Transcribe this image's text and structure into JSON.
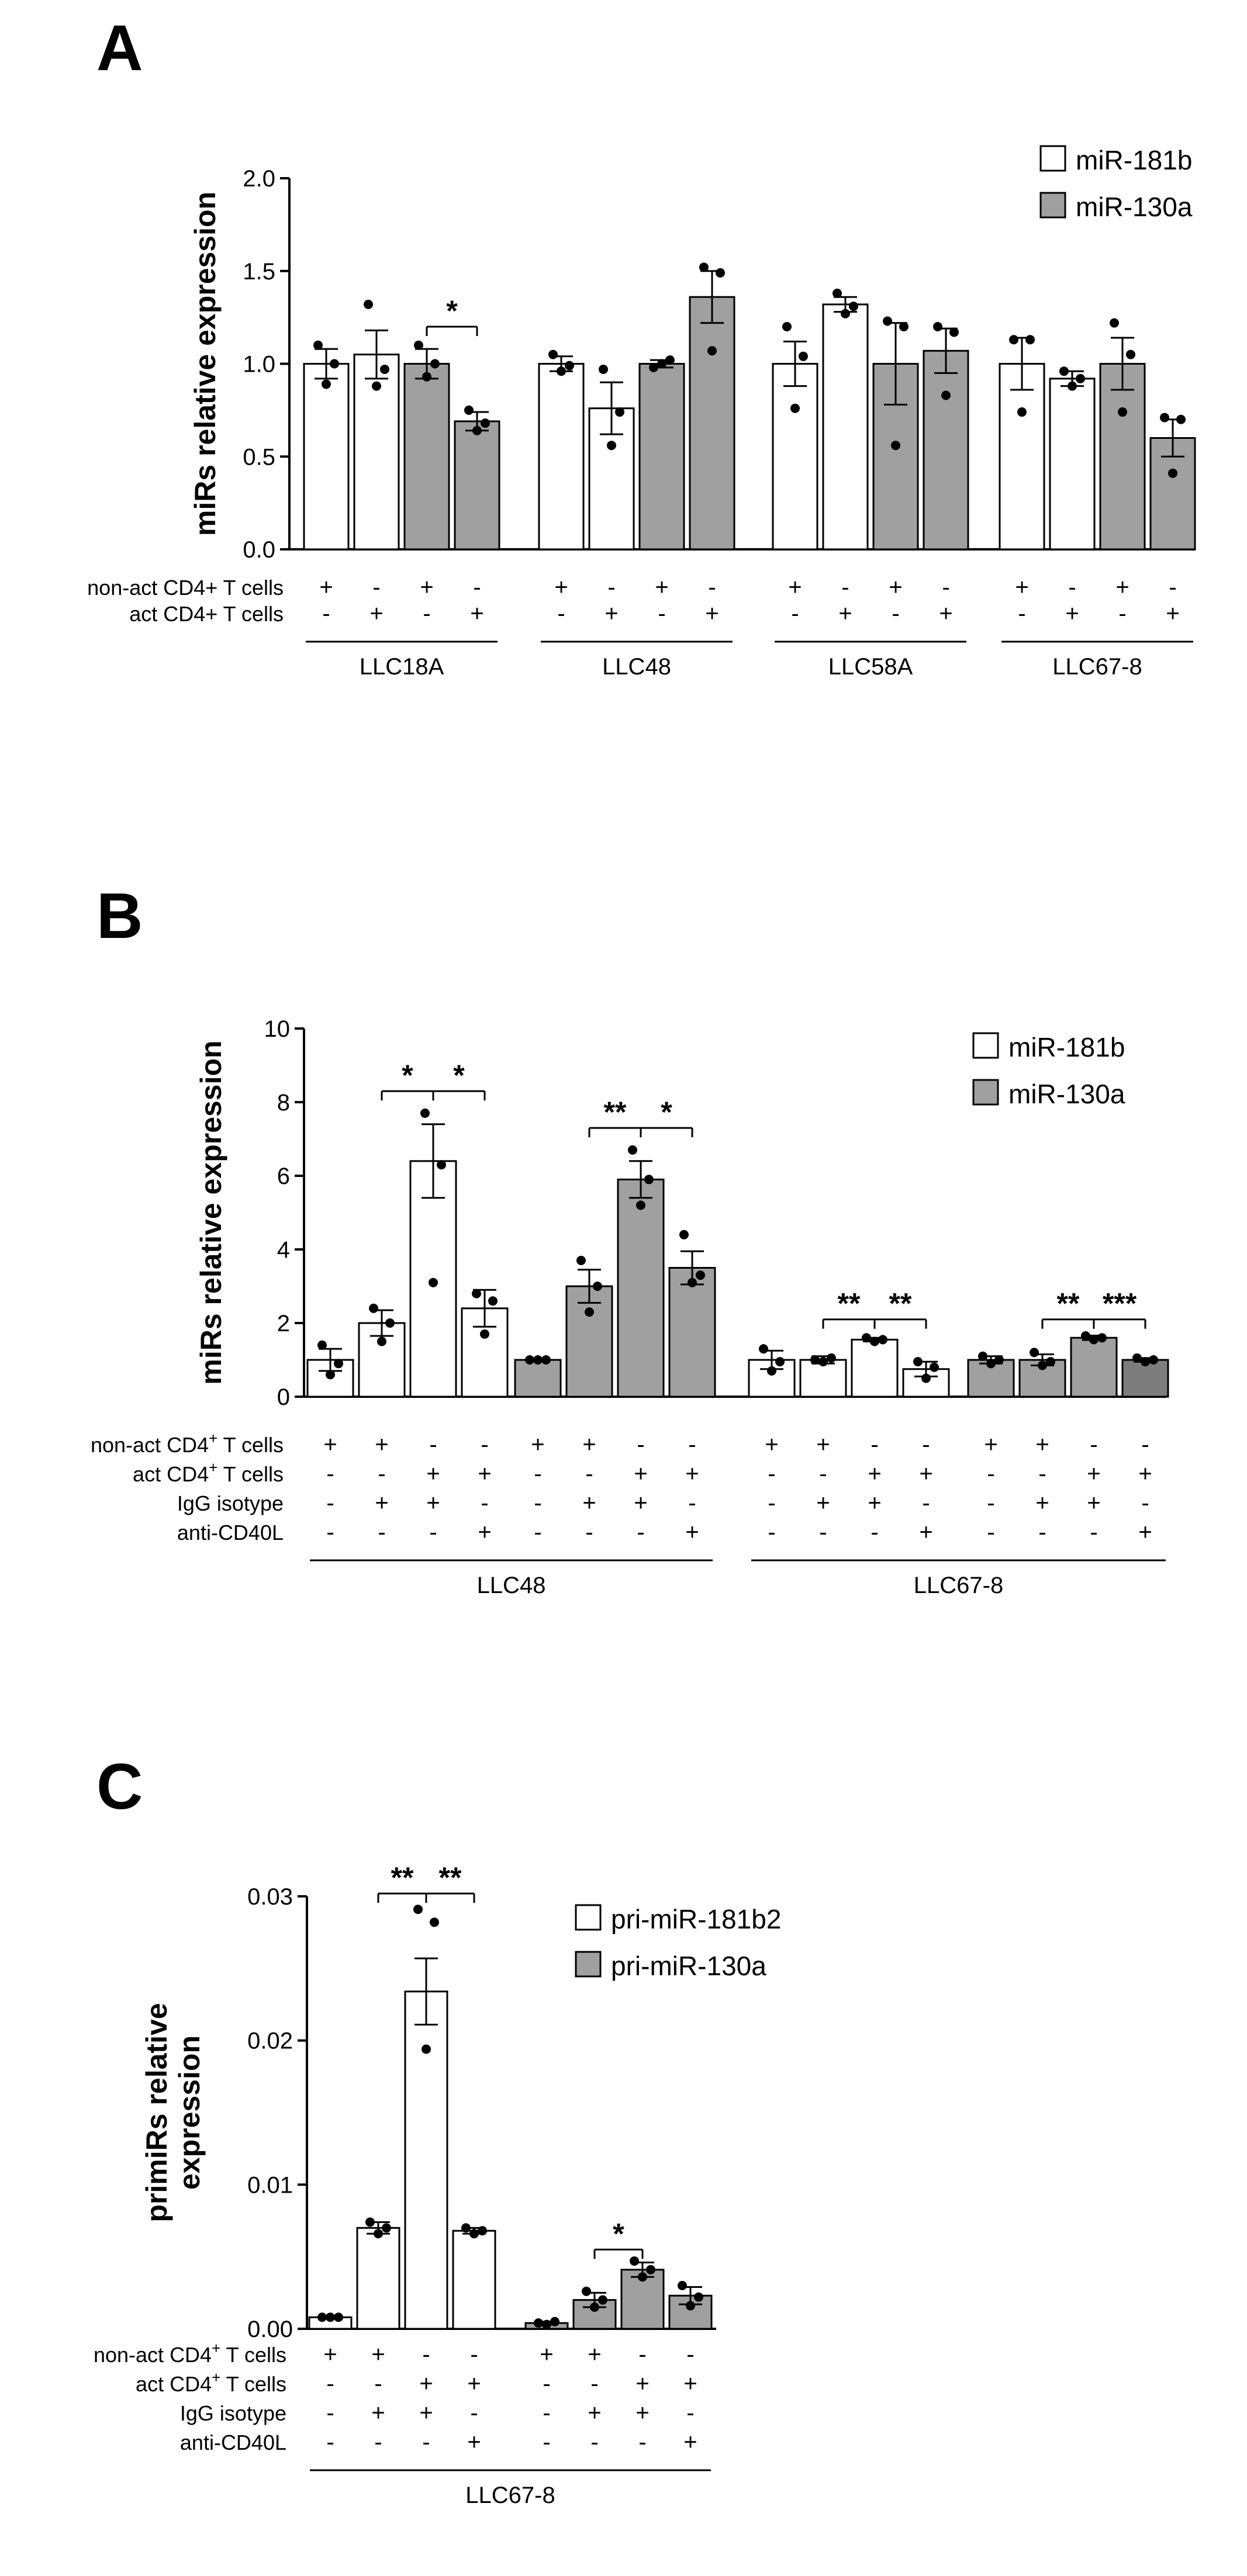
{
  "colors": {
    "white_bar": "#ffffff",
    "grey_bar": "#a0a0a0",
    "dark_bar": "#7d7d7d",
    "ink": "#000000"
  },
  "chart_data": [
    {
      "panel": "A",
      "type": "bar",
      "ylabel": "miRs relative expression",
      "ylim": [
        0,
        2.0
      ],
      "yticks": [
        "0.0",
        "0.5",
        "1.0",
        "1.5",
        "2.0"
      ],
      "legend": {
        "position": "top-right",
        "entries": [
          {
            "label": "miR-181b",
            "fill": "white"
          },
          {
            "label": "miR-130a",
            "fill": "grey"
          }
        ]
      },
      "condition_labels": [
        "non-act CD4+ T cells",
        "act CD4+ T cells"
      ],
      "conditions": [
        [
          "+",
          "-",
          "+",
          "-"
        ],
        [
          "-",
          "+",
          "-",
          "+"
        ]
      ],
      "fills": [
        "white",
        "white",
        "grey",
        "grey"
      ],
      "groups": [
        {
          "name": "LLC18A",
          "values": [
            1.0,
            1.05,
            1.0,
            0.69
          ],
          "errors": [
            0.08,
            0.13,
            0.08,
            0.05
          ],
          "points": [
            [
              1.1,
              0.89,
              1.0
            ],
            [
              1.32,
              0.88,
              0.97
            ],
            [
              1.1,
              0.93,
              1.0
            ],
            [
              0.75,
              0.64,
              0.68
            ]
          ]
        },
        {
          "name": "LLC48",
          "values": [
            1.0,
            0.76,
            1.0,
            1.36
          ],
          "errors": [
            0.04,
            0.14,
            0.02,
            0.14
          ],
          "points": [
            [
              1.05,
              0.96,
              0.99
            ],
            [
              0.97,
              0.56,
              0.74
            ],
            [
              0.98,
              1.0,
              1.02
            ],
            [
              1.52,
              1.07,
              1.49
            ]
          ]
        },
        {
          "name": "LLC58A",
          "values": [
            1.0,
            1.32,
            1.0,
            1.07
          ],
          "errors": [
            0.12,
            0.04,
            0.22,
            0.12
          ],
          "points": [
            [
              1.2,
              0.76,
              1.04
            ],
            [
              1.38,
              1.27,
              1.31
            ],
            [
              1.23,
              0.56,
              1.2
            ],
            [
              1.2,
              0.83,
              1.17
            ]
          ]
        },
        {
          "name": "LLC67-8",
          "values": [
            1.0,
            0.92,
            1.0,
            0.6
          ],
          "errors": [
            0.14,
            0.04,
            0.14,
            0.1
          ],
          "points": [
            [
              1.13,
              0.74,
              1.13
            ],
            [
              0.96,
              0.88,
              0.92
            ],
            [
              1.22,
              0.74,
              1.05
            ],
            [
              0.71,
              0.41,
              0.7
            ]
          ]
        }
      ],
      "significance": [
        {
          "group": 0,
          "from": 2,
          "to": 3,
          "label": "*"
        }
      ]
    },
    {
      "panel": "B",
      "type": "bar",
      "ylabel": "miRs relative expression",
      "ylim": [
        0,
        10
      ],
      "yticks": [
        "0",
        "2",
        "4",
        "6",
        "8",
        "10"
      ],
      "legend": {
        "position": "top-right",
        "entries": [
          {
            "label": "miR-181b",
            "fill": "white"
          },
          {
            "label": "miR-130a",
            "fill": "grey"
          }
        ]
      },
      "condition_labels": [
        "non-act CD4+ T cells",
        "act CD4+ T cells",
        "IgG isotype",
        "anti-CD40L"
      ],
      "conditions": [
        [
          "+",
          "+",
          "-",
          "-"
        ],
        [
          "-",
          "-",
          "+",
          "+"
        ],
        [
          "-",
          "+",
          "+",
          "-"
        ],
        [
          "-",
          "-",
          "-",
          "+"
        ]
      ],
      "subgroups": [
        {
          "name": "LLC48",
          "fill": "white",
          "values": [
            1.0,
            2.0,
            6.4,
            2.4
          ],
          "errors": [
            0.3,
            0.35,
            1.0,
            0.5
          ],
          "points": [
            [
              1.4,
              0.6,
              0.9
            ],
            [
              2.4,
              1.5,
              2.0
            ],
            [
              7.7,
              3.1,
              6.3
            ],
            [
              2.8,
              1.7,
              2.6
            ]
          ]
        },
        {
          "name": "LLC48",
          "fill": "grey",
          "values": [
            1.0,
            3.0,
            5.9,
            3.5
          ],
          "errors": [
            0.04,
            0.45,
            0.5,
            0.45
          ],
          "points": [
            [
              1.0,
              1.0,
              1.0
            ],
            [
              3.7,
              2.3,
              3.0
            ],
            [
              6.7,
              5.2,
              5.9
            ],
            [
              4.4,
              3.1,
              3.3
            ]
          ]
        },
        {
          "name": "LLC67-8",
          "fill": "white",
          "values": [
            1.0,
            1.0,
            1.55,
            0.75
          ],
          "errors": [
            0.25,
            0.1,
            0.05,
            0.2
          ],
          "points": [
            [
              1.3,
              0.7,
              0.95
            ],
            [
              1.0,
              0.95,
              1.05
            ],
            [
              1.6,
              1.5,
              1.55
            ],
            [
              0.95,
              0.5,
              0.8
            ]
          ]
        },
        {
          "name": "LLC67-8",
          "fill": "grey",
          "values": [
            1.0,
            1.0,
            1.6,
            1.0
          ],
          "errors": [
            0.1,
            0.15,
            0.06,
            0.05
          ],
          "points": [
            [
              1.1,
              0.9,
              1.0
            ],
            [
              1.2,
              0.85,
              0.95
            ],
            [
              1.65,
              1.55,
              1.6
            ],
            [
              1.05,
              0.95,
              1.0
            ]
          ],
          "last_fill": "dark"
        }
      ],
      "group_labels": [
        {
          "name": "LLC48",
          "from": 0,
          "to": 1
        },
        {
          "name": "LLC67-8",
          "from": 2,
          "to": 3
        }
      ],
      "significance": [
        {
          "subgroup": 0,
          "from": 1,
          "to": 2,
          "y": 8.3,
          "label": "*"
        },
        {
          "subgroup": 0,
          "from": 2,
          "to": 3,
          "y": 8.3,
          "label": "*"
        },
        {
          "subgroup": 1,
          "from": 1,
          "to": 2,
          "y": 7.3,
          "label": "**"
        },
        {
          "subgroup": 1,
          "from": 2,
          "to": 3,
          "y": 7.3,
          "label": "*"
        },
        {
          "subgroup": 2,
          "from": 1,
          "to": 2,
          "y": 2.1,
          "label": "**"
        },
        {
          "subgroup": 2,
          "from": 2,
          "to": 3,
          "y": 2.1,
          "label": "**"
        },
        {
          "subgroup": 3,
          "from": 1,
          "to": 2,
          "y": 2.1,
          "label": "**"
        },
        {
          "subgroup": 3,
          "from": 2,
          "to": 3,
          "y": 2.1,
          "label": "***"
        }
      ]
    },
    {
      "panel": "C",
      "type": "bar",
      "ylabel": [
        "primiRs relative",
        "expression"
      ],
      "ylim": [
        0,
        0.03
      ],
      "yticks": [
        "0.00",
        "0.01",
        "0.02",
        "0.03"
      ],
      "legend": {
        "position": "top-right",
        "entries": [
          {
            "label": "pri-miR-181b2",
            "fill": "white"
          },
          {
            "label": "pri-miR-130a",
            "fill": "grey"
          }
        ]
      },
      "condition_labels": [
        "non-act CD4+ T cells",
        "act CD4+ T cells",
        "IgG isotype",
        "anti-CD40L"
      ],
      "conditions": [
        [
          "+",
          "+",
          "-",
          "-"
        ],
        [
          "-",
          "-",
          "+",
          "+"
        ],
        [
          "-",
          "+",
          "+",
          "-"
        ],
        [
          "-",
          "-",
          "-",
          "+"
        ]
      ],
      "subgroups": [
        {
          "fill": "white",
          "values": [
            0.0008,
            0.007,
            0.0234,
            0.0068
          ],
          "errors": [
            0.0001,
            0.0004,
            0.0023,
            0.0002
          ],
          "points": [
            [
              0.0008,
              0.0008,
              0.0008
            ],
            [
              0.0074,
              0.0066,
              0.007
            ],
            [
              0.0291,
              0.0194,
              0.0282
            ],
            [
              0.007,
              0.0066,
              0.0068
            ]
          ]
        },
        {
          "fill": "grey",
          "values": [
            0.0004,
            0.002,
            0.0041,
            0.0023
          ],
          "errors": [
            0.0001,
            0.0005,
            0.0005,
            0.0006
          ],
          "points": [
            [
              0.0004,
              0.0003,
              0.0005
            ],
            [
              0.0026,
              0.0015,
              0.002
            ],
            [
              0.0047,
              0.0036,
              0.0041
            ],
            [
              0.003,
              0.0016,
              0.0022
            ]
          ]
        }
      ],
      "group_labels": [
        {
          "name": "LLC67-8",
          "from": 0,
          "to": 1
        }
      ],
      "significance": [
        {
          "subgroup": 0,
          "from": 1,
          "to": 2,
          "y": 0.0302,
          "label": "**"
        },
        {
          "subgroup": 0,
          "from": 2,
          "to": 3,
          "y": 0.0302,
          "label": "**"
        },
        {
          "subgroup": 1,
          "from": 1,
          "to": 2,
          "y": 0.0055,
          "label": "*"
        }
      ]
    }
  ]
}
